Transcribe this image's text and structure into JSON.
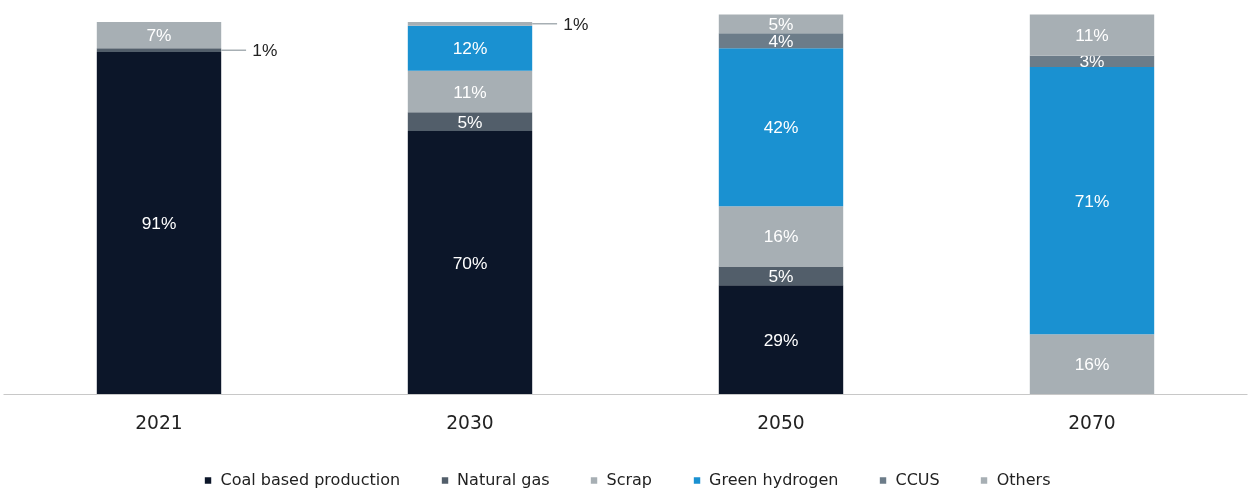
{
  "chart_data": {
    "type": "bar",
    "stacked": true,
    "categories": [
      "2021",
      "2030",
      "2050",
      "2070"
    ],
    "series": [
      {
        "name": "Coal based production",
        "color": "#0c1629",
        "values": [
          91,
          70,
          29,
          null
        ],
        "value_labels": [
          "91%",
          "70%",
          "29%",
          null
        ]
      },
      {
        "name": "Natural gas",
        "color": "#525e6a",
        "values": [
          1,
          5,
          5,
          null
        ],
        "value_labels": [
          "1%",
          "5%",
          "5%",
          null
        ]
      },
      {
        "name": "Scrap",
        "color": "#a7afb4",
        "values": [
          null,
          11,
          16,
          16
        ],
        "value_labels": [
          null,
          "11%",
          "16%",
          "16%"
        ]
      },
      {
        "name": "Green hydrogen",
        "color": "#1a91d1",
        "values": [
          null,
          12,
          42,
          71
        ],
        "value_labels": [
          null,
          "12%",
          "42%",
          "71%"
        ]
      },
      {
        "name": "CCUS",
        "color": "#6c7c89",
        "values": [
          null,
          null,
          4,
          3
        ],
        "value_labels": [
          null,
          null,
          "4%",
          "3%"
        ]
      },
      {
        "name": "Others",
        "color": "#a7afb4",
        "values": [
          7,
          1,
          5,
          11
        ],
        "value_labels": [
          "7%",
          "1%",
          "5%",
          "11%"
        ]
      }
    ],
    "legend": "bottom"
  }
}
